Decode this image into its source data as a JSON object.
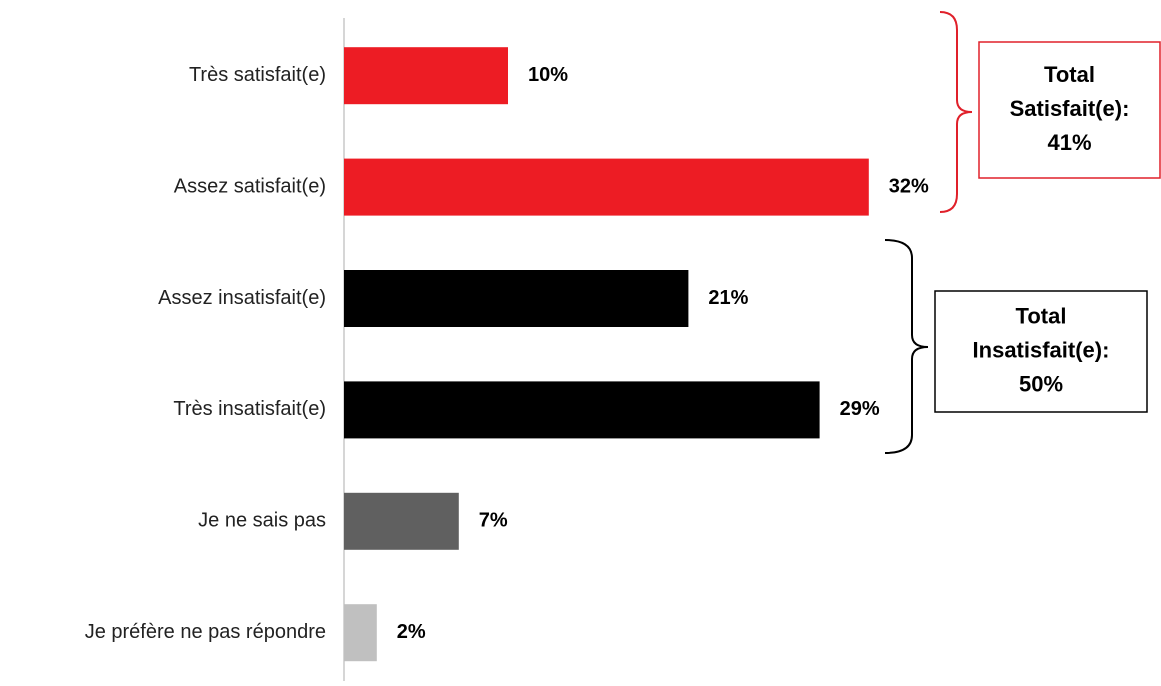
{
  "chart_data": {
    "type": "hbar",
    "categories": [
      "Très satisfait(e)",
      "Assez satisfait(e)",
      "Assez insatisfait(e)",
      "Très insatisfait(e)",
      "Je ne sais pas",
      "Je préfère ne pas répondre"
    ],
    "values": [
      10,
      32,
      21,
      29,
      7,
      2
    ],
    "value_labels": [
      "10%",
      "32%",
      "21%",
      "29%",
      "7%",
      "2%"
    ],
    "colors": [
      "#ed1c24",
      "#ed1c24",
      "#000000",
      "#000000",
      "#606060",
      "#c0c0c0"
    ],
    "xlim": [
      0,
      50
    ],
    "annotations": [
      {
        "lines": [
          "Total",
          "Satisfait(e):",
          "41%"
        ],
        "color": "#e0202a"
      },
      {
        "lines": [
          "Total",
          "Insatisfait(e):",
          "50%"
        ],
        "color": "#000000"
      }
    ]
  }
}
